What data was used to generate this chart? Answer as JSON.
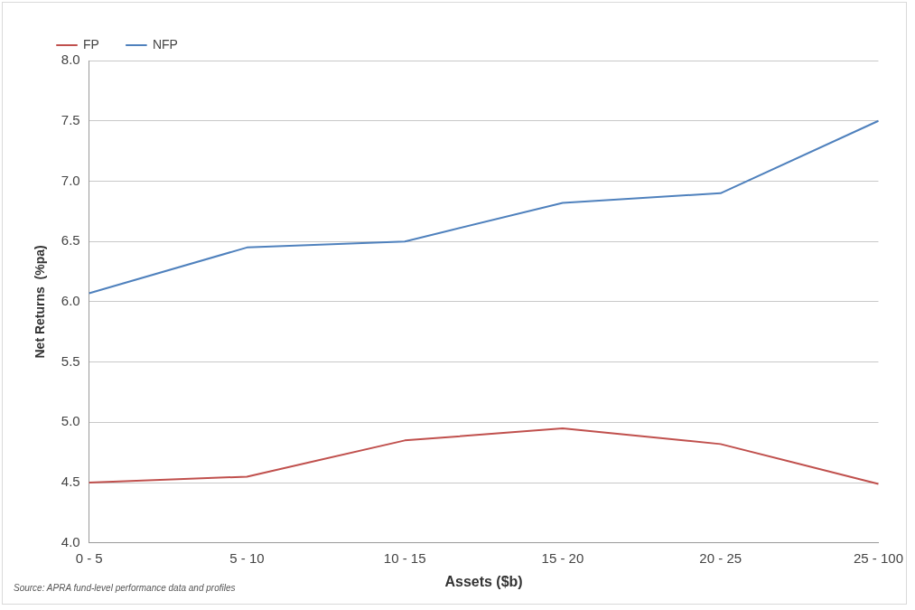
{
  "chart_data": {
    "type": "line",
    "xlabel": "Assets ($b)",
    "ylabel": "Net Returns  (%pa)",
    "categories": [
      "0 - 5",
      "5 - 10",
      "10 - 15",
      "15 - 20",
      "20 - 25",
      "25 - 100"
    ],
    "series": [
      {
        "name": "FP",
        "color": "#c0504d",
        "values": [
          4.5,
          4.55,
          4.85,
          4.95,
          4.82,
          4.49
        ]
      },
      {
        "name": "NFP",
        "color": "#4f81bd",
        "values": [
          6.07,
          6.45,
          6.5,
          6.82,
          6.9,
          7.5
        ]
      }
    ],
    "ylim": [
      4.0,
      8.0
    ],
    "yticks": [
      {
        "value": 4,
        "label": "4.0"
      },
      {
        "value": 4.5,
        "label": "4.5"
      },
      {
        "value": 5,
        "label": "5.0"
      },
      {
        "value": 5.5,
        "label": "5.5"
      },
      {
        "value": 6,
        "label": "6.0"
      },
      {
        "value": 6.5,
        "label": "6.5"
      },
      {
        "value": 7,
        "label": "7.0"
      },
      {
        "value": 7.5,
        "label": "7.5"
      },
      {
        "value": 8,
        "label": "8.0"
      }
    ],
    "grid": "y",
    "legend": "top left",
    "marker": "none",
    "line_style": "solid",
    "annotations": [
      "Source: APRA fund-level performance data and profiles"
    ]
  }
}
